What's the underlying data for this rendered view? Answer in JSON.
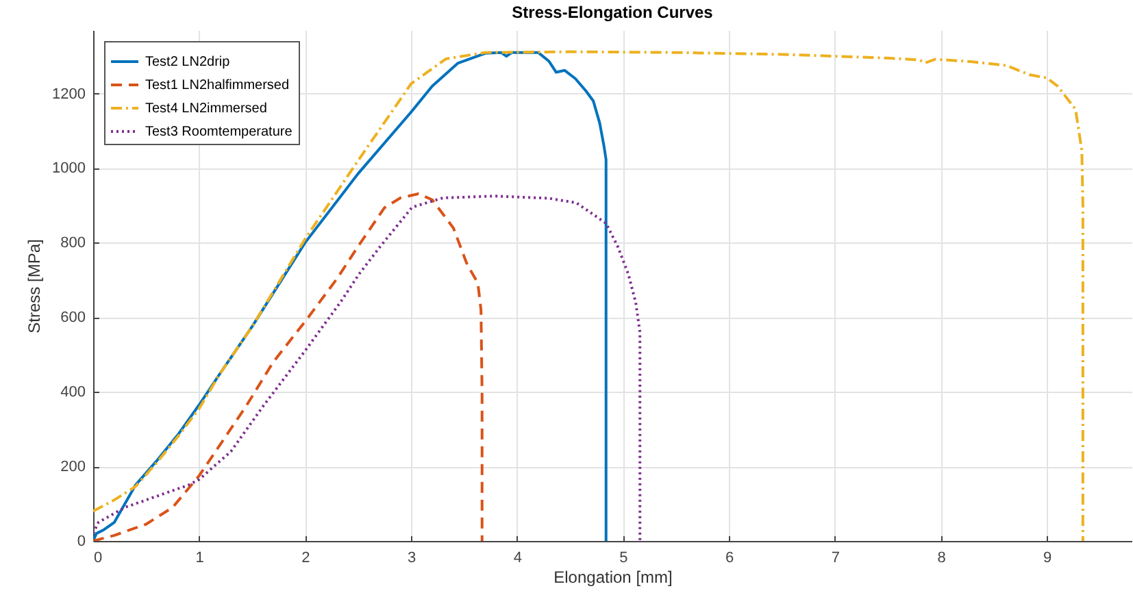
{
  "chart_data": {
    "type": "line",
    "title": "Stress-Elongation Curves",
    "xlabel": "Elongation [mm]",
    "ylabel": "Stress [MPa]",
    "xlim": [
      0,
      9.8
    ],
    "ylim": [
      0,
      1370
    ],
    "xticks": [
      0,
      1,
      2,
      3,
      4,
      5,
      6,
      7,
      8,
      9
    ],
    "yticks": [
      0,
      200,
      400,
      600,
      800,
      1000,
      1200
    ],
    "grid": true,
    "legend": "top left",
    "series": [
      {
        "name": "Test2 LN2drip",
        "color": "#0072bd",
        "line_style": "solid",
        "x": [
          0,
          0.03,
          0.1,
          0.2,
          0.3,
          0.4,
          0.6,
          0.8,
          1.0,
          1.2,
          1.5,
          1.8,
          2.0,
          2.5,
          3.0,
          3.2,
          3.44,
          3.7,
          3.85,
          3.9,
          3.95,
          4.2,
          4.3,
          4.37,
          4.45,
          4.55,
          4.65,
          4.72,
          4.78,
          4.82,
          4.84,
          4.84
        ],
        "values": [
          0,
          20,
          30,
          50,
          100,
          150,
          215,
          285,
          365,
          450,
          575,
          710,
          800,
          985,
          1150,
          1220,
          1281,
          1308,
          1310,
          1300,
          1310,
          1310,
          1287,
          1257,
          1262,
          1240,
          1207,
          1180,
          1121,
          1060,
          1023,
          0
        ]
      },
      {
        "name": "Test1 LN2halfimmersed",
        "color": "#d95319",
        "line_style": "dashed",
        "x": [
          0,
          0.2,
          0.5,
          0.75,
          1.0,
          1.44,
          1.7,
          2.02,
          2.3,
          2.5,
          2.75,
          2.9,
          3.07,
          3.2,
          3.4,
          3.53,
          3.63,
          3.66,
          3.67,
          3.67
        ],
        "values": [
          0,
          15,
          45,
          90,
          175,
          360,
          480,
          596,
          703,
          790,
          894,
          920,
          931,
          915,
          839,
          741,
          692,
          620,
          400,
          0
        ]
      },
      {
        "name": "Test4 LN2immersed",
        "color": "#edb120",
        "line_style": "dashdot",
        "x": [
          0,
          0.2,
          0.4,
          0.6,
          0.8,
          1.0,
          1.2,
          1.5,
          2.0,
          2.5,
          3.0,
          3.33,
          3.7,
          4.5,
          5.5,
          6.5,
          7.0,
          7.5,
          7.8,
          7.85,
          7.95,
          8.3,
          8.62,
          8.84,
          9.0,
          9.1,
          9.27,
          9.33,
          9.34,
          9.34
        ],
        "values": [
          80,
          110,
          146,
          210,
          280,
          355,
          450,
          575,
          810,
          1020,
          1226,
          1293,
          1310,
          1312,
          1310,
          1305,
          1300,
          1295,
          1290,
          1282,
          1292,
          1285,
          1275,
          1250,
          1242,
          1220,
          1158,
          1048,
          900,
          0
        ]
      },
      {
        "name": "Test3 Roomtemperature",
        "color": "#7e2f8e",
        "line_style": "dotted",
        "x": [
          0,
          0.05,
          0.3,
          0.6,
          0.9,
          1.0,
          1.3,
          1.6,
          2.0,
          2.34,
          2.51,
          2.71,
          3.01,
          3.3,
          3.79,
          4.3,
          4.56,
          4.84,
          4.95,
          5.05,
          5.12,
          5.16,
          5.16,
          5.16
        ],
        "values": [
          20,
          50,
          90,
          120,
          150,
          165,
          240,
          360,
          510,
          643,
          716,
          790,
          895,
          920,
          925,
          919,
          907,
          852,
          790,
          716,
          640,
          560,
          400,
          0
        ]
      }
    ]
  }
}
